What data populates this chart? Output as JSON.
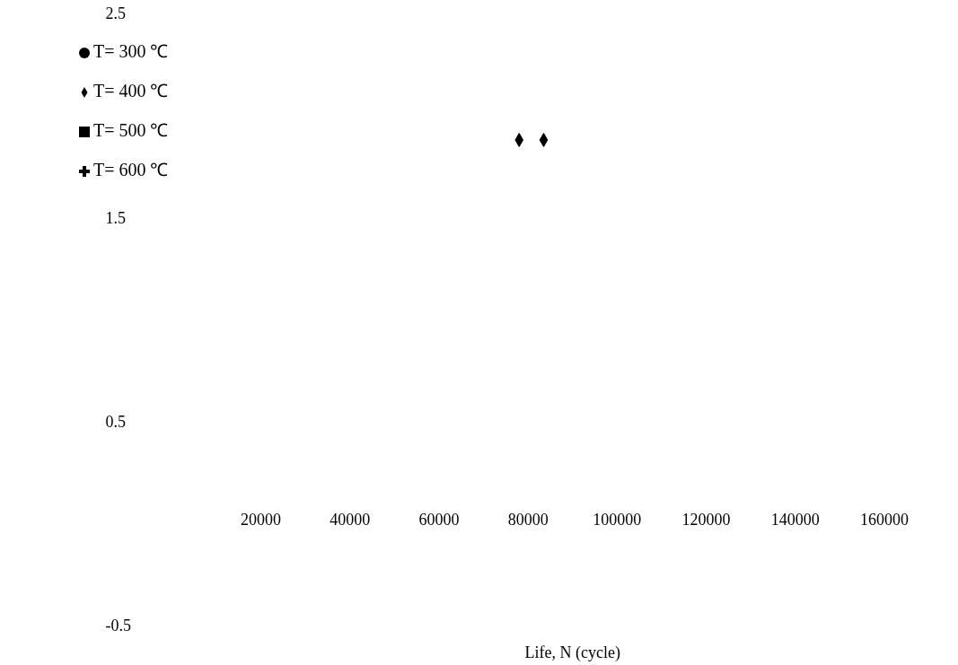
{
  "chart_data": {
    "type": "scatter",
    "xlabel": "Life, N (cycle)",
    "series": [
      {
        "name": "T= 300 ℃",
        "color": "#000000",
        "marker": "circle"
      },
      {
        "name": "T= 400 ℃",
        "color": "#000000",
        "marker": "diamond",
        "x": [
          78000,
          83500
        ],
        "values": [
          1.88,
          1.88
        ]
      },
      {
        "name": "T= 500 ℃",
        "color": "#000000",
        "marker": "square"
      },
      {
        "name": "T= 600 ℃",
        "color": "#000000",
        "marker": "cross"
      }
    ],
    "xlim": [
      20000,
      160000
    ],
    "xticks": [
      20000,
      40000,
      60000,
      80000,
      100000,
      120000,
      140000,
      160000
    ],
    "ylim": [
      -0.5,
      2.5
    ],
    "yticks": [
      -0.5,
      0.5,
      1.5,
      2.5
    ],
    "legend": "top left"
  }
}
